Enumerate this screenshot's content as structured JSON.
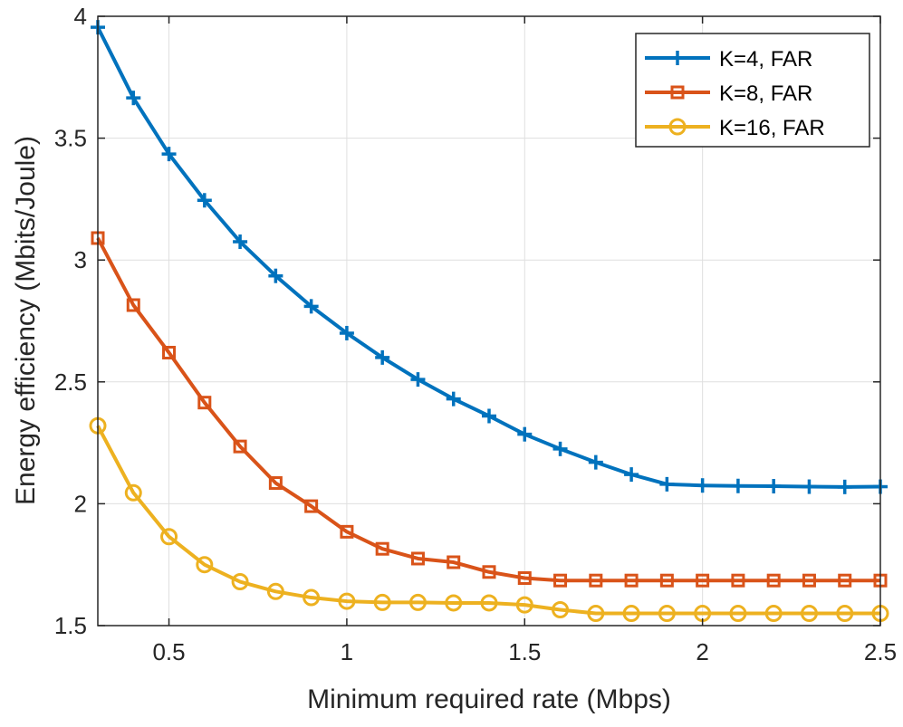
{
  "chart_data": {
    "type": "line",
    "title": "",
    "xlabel": "Minimum required rate (Mbps)",
    "ylabel": "Energy efficiency (Mbits/Joule)",
    "xlim": [
      0.3,
      2.5
    ],
    "ylim": [
      1.5,
      4
    ],
    "xticks": [
      0.5,
      1,
      1.5,
      2,
      2.5
    ],
    "xtick_labels": [
      "0.5",
      "1",
      "1.5",
      "2",
      "2.5"
    ],
    "yticks": [
      1.5,
      2,
      2.5,
      3,
      3.5,
      4
    ],
    "ytick_labels": [
      "1.5",
      "2",
      "2.5",
      "3",
      "3.5",
      "4"
    ],
    "grid": true,
    "legend_position": "top-right",
    "x": [
      0.3,
      0.4,
      0.5,
      0.6,
      0.7,
      0.8,
      0.9,
      1.0,
      1.1,
      1.2,
      1.3,
      1.4,
      1.5,
      1.6,
      1.7,
      1.8,
      1.9,
      2.0,
      2.1,
      2.2,
      2.3,
      2.4,
      2.5
    ],
    "series": [
      {
        "name": "K=4, FAR",
        "color": "#0072BD",
        "marker": "plus",
        "values": [
          3.955,
          3.665,
          3.435,
          3.245,
          3.075,
          2.935,
          2.81,
          2.7,
          2.6,
          2.51,
          2.43,
          2.36,
          2.285,
          2.225,
          2.17,
          2.12,
          2.08,
          2.075,
          2.073,
          2.072,
          2.07,
          2.069,
          2.07
        ]
      },
      {
        "name": "K=8, FAR",
        "color": "#D95319",
        "marker": "square",
        "values": [
          3.09,
          2.815,
          2.62,
          2.415,
          2.235,
          2.085,
          1.99,
          1.885,
          1.815,
          1.775,
          1.76,
          1.72,
          1.695,
          1.685,
          1.685,
          1.685,
          1.685,
          1.685,
          1.685,
          1.685,
          1.685,
          1.685,
          1.685
        ]
      },
      {
        "name": "K=16, FAR",
        "color": "#EDB120",
        "marker": "circle",
        "values": [
          2.32,
          2.045,
          1.865,
          1.75,
          1.68,
          1.64,
          1.615,
          1.6,
          1.595,
          1.595,
          1.593,
          1.593,
          1.585,
          1.565,
          1.55,
          1.55,
          1.55,
          1.55,
          1.55,
          1.55,
          1.55,
          1.55,
          1.55
        ]
      }
    ]
  }
}
